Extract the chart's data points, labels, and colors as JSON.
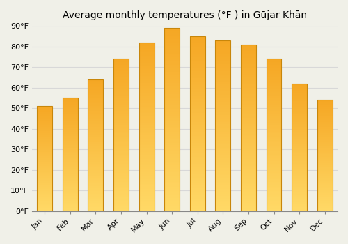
{
  "title": "Average monthly temperatures (°F ) in Gūjar Khān",
  "months": [
    "Jan",
    "Feb",
    "Mar",
    "Apr",
    "May",
    "Jun",
    "Jul",
    "Aug",
    "Sep",
    "Oct",
    "Nov",
    "Dec"
  ],
  "values": [
    51,
    55,
    64,
    74,
    82,
    89,
    85,
    83,
    81,
    74,
    62,
    54
  ],
  "bar_color_top": "#F5A623",
  "bar_color_bottom": "#FFD966",
  "bar_edge_color": "#C8860A",
  "background_color": "#f0f0e8",
  "ylim": [
    0,
    90
  ],
  "yticks": [
    0,
    10,
    20,
    30,
    40,
    50,
    60,
    70,
    80,
    90
  ],
  "ytick_labels": [
    "0°F",
    "10°F",
    "20°F",
    "30°F",
    "40°F",
    "50°F",
    "60°F",
    "70°F",
    "80°F",
    "90°F"
  ],
  "title_fontsize": 10,
  "tick_fontsize": 8,
  "grid_color": "#d8d8d8",
  "bar_width": 0.6
}
